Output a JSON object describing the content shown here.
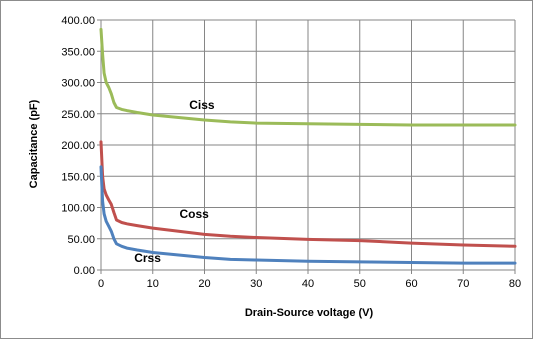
{
  "chart_data": {
    "type": "line",
    "title": "",
    "xlabel": "Drain-Source voltage (V)",
    "ylabel": "Capacitance (pF)",
    "xlim": [
      0,
      80
    ],
    "ylim": [
      0,
      400
    ],
    "x_ticks": [
      0,
      10,
      20,
      30,
      40,
      50,
      60,
      70,
      80
    ],
    "x_tick_labels": [
      "0",
      "10",
      "20",
      "30",
      "40",
      "50",
      "60",
      "70",
      "80"
    ],
    "y_ticks": [
      0,
      50,
      100,
      150,
      200,
      250,
      300,
      350,
      400
    ],
    "y_tick_labels": [
      "0.00",
      "50.00",
      "100.00",
      "150.00",
      "200.00",
      "250.00",
      "300.00",
      "350.00",
      "400.00"
    ],
    "grid": true,
    "legend": "none",
    "series": [
      {
        "name": "Ciss",
        "color": "#9BBB59",
        "x": [
          0,
          0.3,
          0.6,
          1,
          1.5,
          2,
          2.5,
          3,
          4,
          5,
          7,
          10,
          15,
          20,
          25,
          30,
          40,
          50,
          60,
          70,
          80
        ],
        "y": [
          385,
          345,
          315,
          300,
          292,
          282,
          268,
          260,
          257,
          255,
          252,
          248,
          244,
          240,
          237,
          235,
          234,
          233,
          232,
          232,
          232
        ]
      },
      {
        "name": "Coss",
        "color": "#C0504D",
        "x": [
          0,
          0.3,
          0.6,
          1,
          1.5,
          2,
          2.5,
          3,
          4,
          5,
          7,
          10,
          15,
          20,
          25,
          30,
          40,
          50,
          60,
          70,
          80
        ],
        "y": [
          205,
          150,
          130,
          120,
          112,
          105,
          92,
          80,
          76,
          74,
          71,
          67,
          62,
          57,
          54,
          52,
          49,
          47,
          43,
          40,
          38
        ]
      },
      {
        "name": "Crss",
        "color": "#4F81BD",
        "x": [
          0,
          0.3,
          0.6,
          1,
          1.5,
          2,
          2.5,
          3,
          4,
          5,
          7,
          10,
          15,
          20,
          25,
          30,
          40,
          50,
          60,
          70,
          80
        ],
        "y": [
          165,
          110,
          90,
          78,
          70,
          62,
          50,
          42,
          38,
          35,
          32,
          28,
          24,
          20,
          17,
          16,
          14,
          13,
          12,
          11,
          11
        ]
      }
    ],
    "annotations": [
      {
        "text": "Ciss",
        "x": 19.5,
        "y": 258
      },
      {
        "text": "Coss",
        "x": 18,
        "y": 83
      },
      {
        "text": "Crss",
        "x": 9,
        "y": 13
      }
    ]
  }
}
